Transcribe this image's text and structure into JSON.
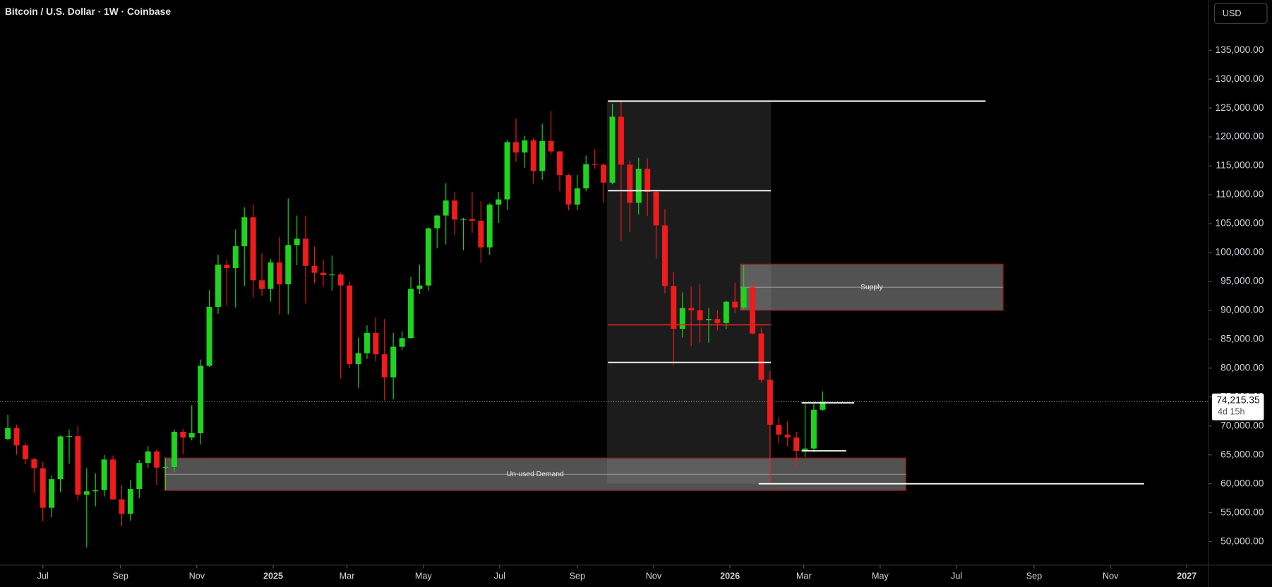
{
  "chart_data": {
    "type": "candlestick",
    "title": "Bitcoin / U.S. Dollar · 1W · Coinbase",
    "currency": "USD",
    "up_color": "#1ed41e",
    "down_color": "#f01b1b",
    "open": [
      67750,
      69650,
      66640,
      64250,
      62700,
      55850,
      60800,
      68200,
      68250,
      58100,
      58700,
      58900,
      64200,
      57300,
      54800,
      59100,
      63600,
      65600,
      62800,
      62900,
      69000,
      68000,
      68750,
      80400,
      90600,
      97900,
      97300,
      101100,
      106100,
      95200,
      93700,
      98300,
      94500,
      101300,
      102400,
      97700,
      96500,
      96100,
      96200,
      94300,
      80700,
      82600,
      86100,
      82400,
      78400,
      83700,
      85200,
      93700,
      94300,
      104200,
      106400,
      109000,
      105700,
      105800,
      105500,
      100900,
      108300,
      109200,
      119100,
      117300,
      119400,
      114100,
      119300,
      117500,
      113400,
      108300,
      111100,
      115300,
      115200,
      112100,
      123500,
      115200,
      108600,
      114500,
      110500,
      104700,
      94200,
      86800,
      90400,
      90000,
      88300,
      88500,
      87800,
      91500,
      90500,
      94000,
      86000,
      78000,
      70200,
      68500,
      68000,
      65700,
      66100,
      72800
    ],
    "high": [
      71950,
      70200,
      66980,
      64520,
      63800,
      61400,
      68350,
      69400,
      70000,
      62700,
      61800,
      65000,
      64900,
      59800,
      60700,
      64100,
      66500,
      66000,
      64500,
      69400,
      69500,
      73600,
      81500,
      93500,
      99650,
      98800,
      104000,
      107800,
      108300,
      99900,
      98900,
      102700,
      109350,
      106400,
      106400,
      101000,
      98800,
      99500,
      96500,
      95000,
      85300,
      87400,
      88800,
      88500,
      86100,
      86400,
      95800,
      97900,
      104300,
      106500,
      112000,
      110400,
      106000,
      110500,
      108900,
      108500,
      110500,
      119500,
      123200,
      120200,
      119800,
      122300,
      124500,
      117600,
      113600,
      113400,
      116800,
      117900,
      115400,
      125700,
      126200,
      115900,
      116400,
      116300,
      110800,
      107500,
      96600,
      93100,
      94100,
      94600,
      90400,
      90000,
      91600,
      94800,
      97800,
      95000,
      87000,
      79500,
      71500,
      70800,
      69000,
      74000,
      73800,
      76000
    ],
    "low": [
      67500,
      65000,
      63400,
      58400,
      53500,
      54200,
      58600,
      63500,
      57100,
      49000,
      56100,
      57800,
      57200,
      52600,
      53600,
      57500,
      62700,
      59800,
      58900,
      62000,
      65100,
      67500,
      66800,
      80200,
      89400,
      90800,
      90500,
      94200,
      92200,
      92500,
      91500,
      89300,
      89300,
      97800,
      91200,
      94700,
      94100,
      93400,
      78200,
      80000,
      76600,
      81600,
      81200,
      74400,
      74600,
      83100,
      85100,
      92800,
      93400,
      100700,
      101400,
      103000,
      100400,
      103400,
      98200,
      99600,
      105100,
      107400,
      115700,
      114700,
      111900,
      112600,
      116900,
      110600,
      107300,
      107300,
      110600,
      114500,
      108600,
      111800,
      102000,
      103500,
      106600,
      106300,
      98900,
      93000,
      80500,
      85300,
      83800,
      84400,
      84400,
      86500,
      86800,
      89500,
      90200,
      85800,
      77500,
      60000,
      67000,
      66500,
      62800,
      64600,
      65500,
      72600
    ],
    "close": [
      69650,
      66640,
      64250,
      62700,
      55850,
      60800,
      68200,
      68250,
      58100,
      58700,
      58900,
      64200,
      57300,
      54800,
      59100,
      63600,
      65600,
      62800,
      62900,
      69000,
      68000,
      68750,
      80400,
      90600,
      97900,
      97300,
      101100,
      106100,
      95200,
      93700,
      98300,
      94500,
      101300,
      102400,
      97700,
      96500,
      96100,
      96200,
      94300,
      80700,
      82600,
      86100,
      82400,
      78400,
      83700,
      85200,
      93700,
      94300,
      104200,
      106400,
      109000,
      105700,
      105800,
      105500,
      100900,
      108300,
      109200,
      119100,
      117300,
      119400,
      114100,
      119300,
      117500,
      113400,
      108300,
      111100,
      115300,
      115200,
      112100,
      123500,
      115200,
      108600,
      114500,
      110500,
      104700,
      94200,
      86800,
      90400,
      90000,
      88300,
      88500,
      87800,
      91500,
      90500,
      94000,
      86000,
      78000,
      70200,
      68500,
      68000,
      65700,
      66100,
      72800,
      74215.35
    ],
    "xlim": [
      -0.89,
      137.07
    ],
    "xticks": [
      {
        "value": 4.0,
        "label": "Jul"
      },
      {
        "value": 12.86,
        "label": "Sep"
      },
      {
        "value": 21.57,
        "label": "Nov"
      },
      {
        "value": 30.29,
        "label": "2025"
      },
      {
        "value": 38.71,
        "label": "Mar"
      },
      {
        "value": 47.43,
        "label": "May"
      },
      {
        "value": 56.14,
        "label": "Jul"
      },
      {
        "value": 65.0,
        "label": "Sep"
      },
      {
        "value": 73.71,
        "label": "Nov"
      },
      {
        "value": 82.43,
        "label": "2026"
      },
      {
        "value": 90.86,
        "label": "Mar"
      },
      {
        "value": 99.57,
        "label": "May"
      },
      {
        "value": 108.29,
        "label": "Jul"
      },
      {
        "value": 117.14,
        "label": "Sep"
      },
      {
        "value": 125.86,
        "label": "Nov"
      },
      {
        "value": 134.57,
        "label": "2027"
      }
    ],
    "ylim": [
      45930,
      143690
    ],
    "yticks": [
      {
        "value": 50000,
        "label": "50,000.00"
      },
      {
        "value": 55000,
        "label": "55,000.00"
      },
      {
        "value": 60000,
        "label": "60,000.00"
      },
      {
        "value": 65000,
        "label": "65,000.00"
      },
      {
        "value": 70000,
        "label": "70,000.00"
      },
      {
        "value": 75000,
        "label": "75,000.00"
      },
      {
        "value": 80000,
        "label": "80,000.00"
      },
      {
        "value": 85000,
        "label": "85,000.00"
      },
      {
        "value": 90000,
        "label": "90,000.00"
      },
      {
        "value": 95000,
        "label": "95,000.00"
      },
      {
        "value": 100000,
        "label": "100,000.00"
      },
      {
        "value": 105000,
        "label": "105,000.00"
      },
      {
        "value": 110000,
        "label": "110,000.00"
      },
      {
        "value": 115000,
        "label": "115,000.00"
      },
      {
        "value": 120000,
        "label": "120,000.00"
      },
      {
        "value": 125000,
        "label": "125,000.00"
      },
      {
        "value": 130000,
        "label": "130,000.00"
      },
      {
        "value": 135000,
        "label": "135,000.00"
      }
    ],
    "last_price": {
      "value": 74215.35,
      "label": "74,215.35"
    },
    "countdown": "4d 15h",
    "profile_box": {
      "start": 68.4,
      "end": 87.1,
      "low": 60000,
      "high": 126200
    },
    "levels": [
      {
        "value": 126200,
        "start": 68.5,
        "end": 111.6,
        "color": "#ffffff"
      },
      {
        "value": 110700,
        "start": 68.5,
        "end": 87.1,
        "color": "#ffffff"
      },
      {
        "value": 87500,
        "start": 68.5,
        "end": 87.1,
        "color": "#e02020"
      },
      {
        "value": 81000,
        "start": 68.5,
        "end": 87.1,
        "color": "#ffffff"
      },
      {
        "value": 60000,
        "start": 85.7,
        "end": 129.7,
        "color": "#ffffff"
      },
      {
        "value": 74000,
        "start": 90.6,
        "end": 96.6,
        "color": "#ffffff"
      },
      {
        "value": 65700,
        "start": 90.6,
        "end": 95.7,
        "color": "#ffffff"
      }
    ],
    "zones": [
      {
        "label": "Supply",
        "low": 90000,
        "high": 98000,
        "start": 83.6,
        "end": 113.6
      },
      {
        "label": "Un-used Demand",
        "low": 58850,
        "high": 64450,
        "start": 17.9,
        "end": 102.5
      }
    ]
  }
}
